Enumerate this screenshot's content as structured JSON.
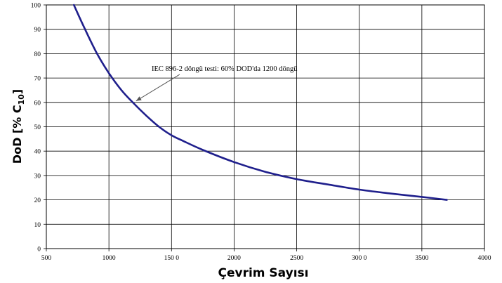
{
  "chart_data": {
    "type": "line",
    "title": "",
    "xlabel": "Çevrim Sayısı",
    "ylabel": {
      "main": "DoD [% C",
      "sub": "10",
      "close": "]"
    },
    "xlim": [
      500,
      4000
    ],
    "ylim": [
      0,
      100
    ],
    "x_ticks": [
      {
        "value": 500,
        "label": "500"
      },
      {
        "value": 1000,
        "label": "1000"
      },
      {
        "value": 1500,
        "label": "150 0"
      },
      {
        "value": 2000,
        "label": "2000"
      },
      {
        "value": 2500,
        "label": "2500"
      },
      {
        "value": 3000,
        "label": "300 0"
      },
      {
        "value": 3500,
        "label": "3500"
      },
      {
        "value": 4000,
        "label": "4000"
      }
    ],
    "y_ticks": [
      0,
      10,
      20,
      30,
      40,
      50,
      60,
      70,
      80,
      90,
      100
    ],
    "grid": true,
    "series": [
      {
        "color": "#1f1f8c",
        "points": [
          [
            720,
            100
          ],
          [
            800,
            91
          ],
          [
            900,
            80.5
          ],
          [
            1000,
            72
          ],
          [
            1100,
            65
          ],
          [
            1200,
            59.5
          ],
          [
            1300,
            54.5
          ],
          [
            1400,
            50
          ],
          [
            1500,
            46.5
          ],
          [
            1600,
            44
          ],
          [
            1750,
            40.5
          ],
          [
            2000,
            35.5
          ],
          [
            2250,
            31.5
          ],
          [
            2500,
            28.5
          ],
          [
            2750,
            26.3
          ],
          [
            3000,
            24.2
          ],
          [
            3250,
            22.6
          ],
          [
            3500,
            21.2
          ],
          [
            3700,
            20
          ]
        ]
      }
    ],
    "annotation": {
      "text": "IEC 896-2 döngü testi: 60% DOD'da 1200 döngü",
      "point": [
        1200,
        60
      ]
    }
  }
}
